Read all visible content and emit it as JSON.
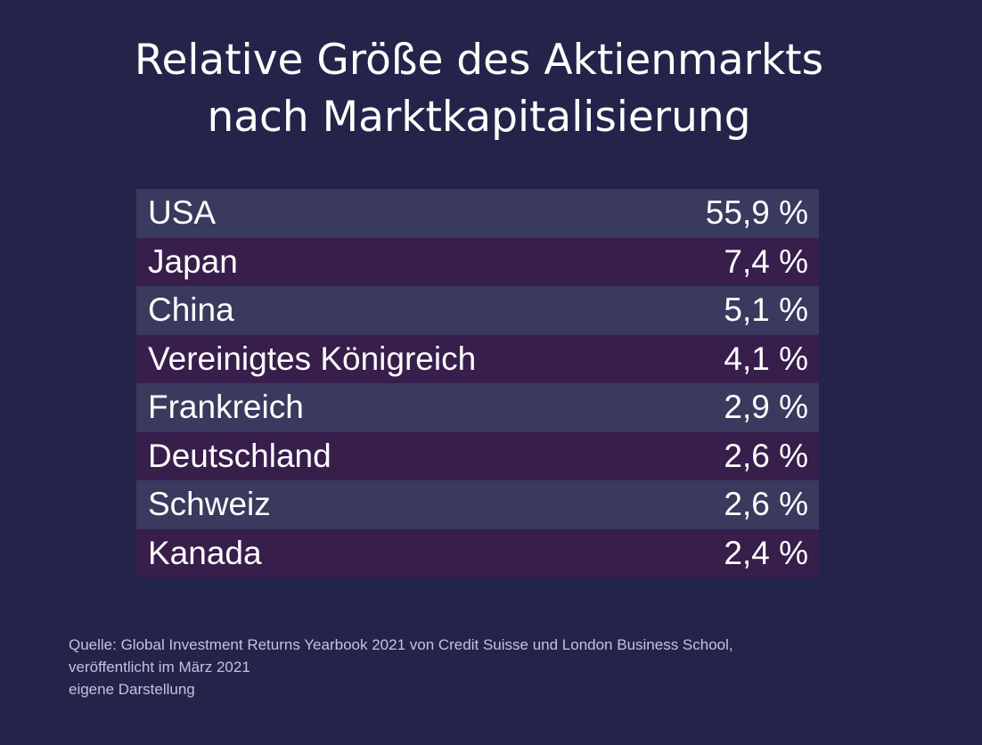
{
  "chart_data": {
    "type": "table",
    "title_lines": [
      "Relative Größe des Aktienmarkts",
      "nach Marktkapitalisierung"
    ],
    "rows": [
      {
        "label": "USA",
        "value": 55.9,
        "display": "55,9 %"
      },
      {
        "label": "Japan",
        "value": 7.4,
        "display": "7,4 %"
      },
      {
        "label": "China",
        "value": 5.1,
        "display": "5,1 %"
      },
      {
        "label": "Vereinigtes Königreich",
        "value": 4.1,
        "display": "4,1 %"
      },
      {
        "label": "Frankreich",
        "value": 2.9,
        "display": "2,9 %"
      },
      {
        "label": "Deutschland",
        "value": 2.6,
        "display": "2,6 %"
      },
      {
        "label": "Schweiz",
        "value": 2.6,
        "display": "2,6 %"
      },
      {
        "label": "Kanada",
        "value": 2.4,
        "display": "2,4 %"
      }
    ],
    "source_lines": [
      "Quelle: Global Investment Returns Yearbook 2021 von Credit Suisse und London Business School,",
      "veröffentlicht im März 2021",
      "eigene Darstellung"
    ]
  },
  "colors": {
    "background": "#24234a",
    "row_light": "#3a3a5e",
    "row_dark": "#381e4b",
    "text": "#ffffff",
    "source_text": "#c4c3dc"
  }
}
